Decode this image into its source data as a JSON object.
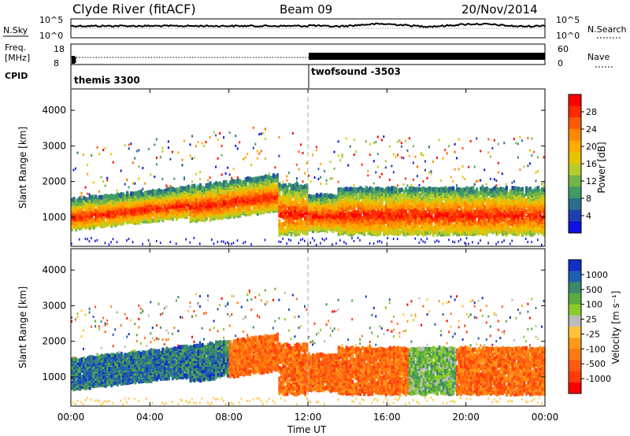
{
  "header": {
    "station": "Clyde River (fitACF)",
    "beam": "Beam 09",
    "date": "20/Nov/2014"
  },
  "nsky_panel": {
    "left_label": "N.Sky",
    "right_label": "N.Search",
    "left_ticks": [
      "10^5",
      "10^0"
    ],
    "right_ticks": [
      "10^5",
      "10^0"
    ]
  },
  "freq_panel": {
    "left_label_1": "Freq.",
    "left_label_2": "[MHz]",
    "right_label": "Nave",
    "left_ticks": [
      "18",
      "8"
    ],
    "right_ticks": [
      "60",
      "0"
    ]
  },
  "cpid": {
    "label": "CPID",
    "segments": [
      {
        "name": "themis 3300",
        "start_hour": 0
      },
      {
        "name": "twofsound -3503",
        "start_hour": 12
      }
    ]
  },
  "chart_data": [
    {
      "type": "heatmap",
      "name": "power",
      "ylabel": "Slant Range [km]",
      "xlabel": "",
      "ylim": [
        180,
        4600
      ],
      "yticks": [
        1000,
        2000,
        3000,
        4000
      ],
      "colorbar_label": "Power [dB]",
      "colorbar_ticks": [
        "28",
        "24",
        "20",
        "16",
        "12",
        "8",
        "4"
      ],
      "colorbar_colors": [
        "#ff0000",
        "#ff2a00",
        "#ff5a00",
        "#ff8800",
        "#ffaa00",
        "#e6c400",
        "#b7cc2a",
        "#74b54a",
        "#3f9a66",
        "#2b6e8a",
        "#2040b0",
        "#1010e0"
      ]
    },
    {
      "type": "heatmap",
      "name": "velocity",
      "ylabel": "Slant Range [km]",
      "xlabel": "Time UT",
      "ylim": [
        180,
        4600
      ],
      "yticks": [
        1000,
        2000,
        3000,
        4000
      ],
      "colorbar_label": "Velocity [m s⁻¹]",
      "colorbar_ticks": [
        "1000",
        "500",
        "100",
        "25",
        "-25",
        "-100",
        "-500",
        "-1000"
      ],
      "colorbar_colors": [
        "#1030c8",
        "#2060b0",
        "#3a8a6a",
        "#5aaa40",
        "#8ccc2a",
        "#bbbbbb",
        "#ffc23a",
        "#ff9a18",
        "#ff7a10",
        "#ff5a10",
        "#ff3a08",
        "#ff0000"
      ]
    }
  ],
  "x_axis": {
    "label": "Time UT",
    "ticks": [
      "00:00",
      "04:00",
      "08:00",
      "12:00",
      "16:00",
      "20:00",
      "00:00"
    ],
    "range_hours": [
      0,
      24
    ]
  }
}
